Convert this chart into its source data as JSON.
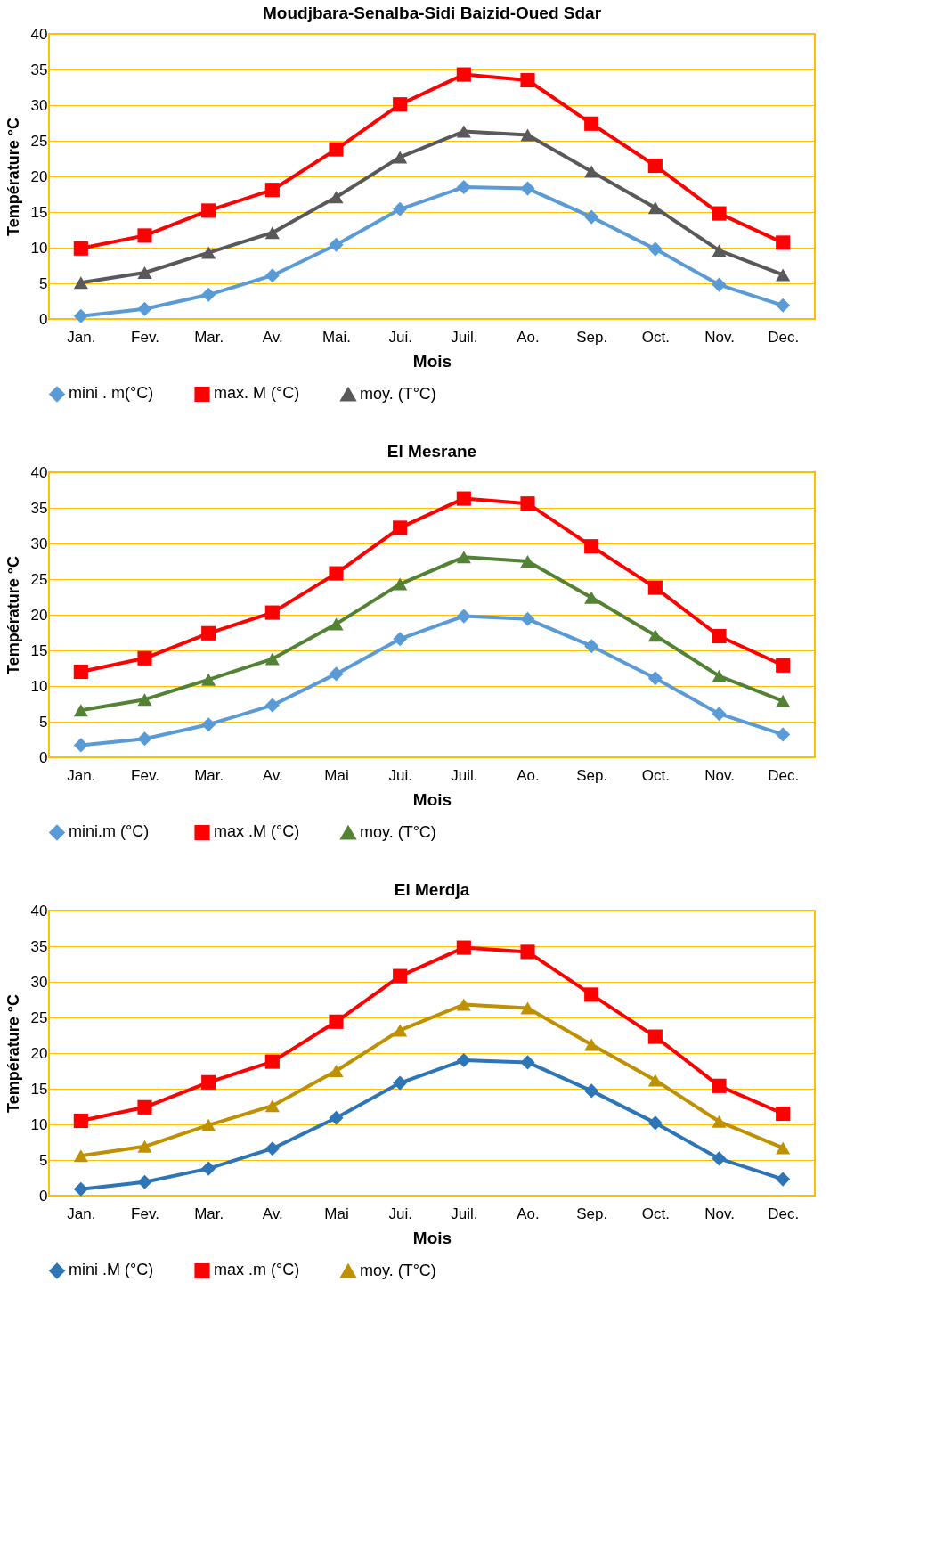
{
  "chart_data": [
    {
      "type": "line",
      "title": "Moudjbara-Senalba-Sidi Baizid-Oued Sdar",
      "xlabel": "Mois",
      "ylabel": "Température °C",
      "categories": [
        "Jan.",
        "Fev.",
        "Mar.",
        "Av.",
        "Mai.",
        "Jui.",
        "Juil.",
        "Ao.",
        "Sep.",
        "Oct.",
        "Nov.",
        "Dec."
      ],
      "ylim": [
        0,
        40
      ],
      "yticks": [
        0,
        5,
        10,
        15,
        20,
        25,
        30,
        35,
        40
      ],
      "grid": "y",
      "legend": "bottom",
      "line_style": "solid",
      "series": [
        {
          "name": "mini . m(°C)",
          "color": "#5b9bd5",
          "marker": "diamond",
          "values": [
            0.4,
            1.4,
            3.4,
            6.1,
            10.4,
            15.4,
            18.5,
            18.3,
            14.3,
            9.8,
            4.8,
            1.9
          ]
        },
        {
          "name": "max. M (°C)",
          "color": "#ff0000",
          "marker": "square",
          "values": [
            9.9,
            11.7,
            15.2,
            18.1,
            23.8,
            30.1,
            34.3,
            33.5,
            27.4,
            21.5,
            14.8,
            10.7
          ]
        },
        {
          "name": "moy. (T°C)",
          "color": "#595959",
          "marker": "triangle",
          "values": [
            5.1,
            6.5,
            9.3,
            12.1,
            17.1,
            22.7,
            26.3,
            25.8,
            20.7,
            15.6,
            9.6,
            6.2
          ]
        }
      ]
    },
    {
      "type": "line",
      "title": "El Mesrane",
      "xlabel": "Mois",
      "ylabel": "Température °C",
      "categories": [
        "Jan.",
        "Fev.",
        "Mar.",
        "Av.",
        "Mai",
        "Jui.",
        "Juil.",
        "Ao.",
        "Sep.",
        "Oct.",
        "Nov.",
        "Dec."
      ],
      "ylim": [
        0,
        40
      ],
      "yticks": [
        0,
        5,
        10,
        15,
        20,
        25,
        30,
        35,
        40
      ],
      "grid": "y",
      "legend": "bottom",
      "line_style": "solid",
      "series": [
        {
          "name": "mini.m  (°C)",
          "color": "#5b9bd5",
          "marker": "diamond",
          "values": [
            1.7,
            2.6,
            4.6,
            7.3,
            11.7,
            16.6,
            19.8,
            19.4,
            15.6,
            11.1,
            6.1,
            3.2
          ]
        },
        {
          "name": "max .M (°C)",
          "color": "#ff0000",
          "marker": "square",
          "values": [
            12.0,
            13.9,
            17.4,
            20.3,
            25.8,
            32.2,
            36.3,
            35.6,
            29.6,
            23.8,
            17.0,
            12.9
          ]
        },
        {
          "name": "moy. (T°C)",
          "color": "#548235",
          "marker": "triangle",
          "values": [
            6.6,
            8.1,
            10.9,
            13.8,
            18.7,
            24.3,
            28.1,
            27.5,
            22.4,
            17.1,
            11.4,
            7.9
          ]
        }
      ]
    },
    {
      "type": "line",
      "title": "El Merdja",
      "xlabel": "Mois",
      "ylabel": "Température °C",
      "categories": [
        "Jan.",
        "Fev.",
        "Mar.",
        "Av.",
        "Mai",
        "Jui.",
        "Juil.",
        "Ao.",
        "Sep.",
        "Oct.",
        "Nov.",
        "Dec."
      ],
      "ylim": [
        0,
        40
      ],
      "yticks": [
        0,
        5,
        10,
        15,
        20,
        25,
        30,
        35,
        40
      ],
      "grid": "y",
      "legend": "bottom",
      "line_style": "solid",
      "series": [
        {
          "name": "mini .M (°C)",
          "color": "#2e75b6",
          "marker": "diamond",
          "values": [
            0.9,
            1.9,
            3.8,
            6.6,
            10.9,
            15.8,
            19.0,
            18.7,
            14.7,
            10.2,
            5.2,
            2.3
          ]
        },
        {
          "name": "max .m (°C)",
          "color": "#ff0000",
          "marker": "square",
          "values": [
            10.5,
            12.4,
            15.9,
            18.8,
            24.4,
            30.8,
            34.8,
            34.2,
            28.2,
            22.3,
            15.4,
            11.5
          ]
        },
        {
          "name": "moy. (T°C)",
          "color": "#bf9000",
          "marker": "triangle",
          "values": [
            5.6,
            6.9,
            9.9,
            12.6,
            17.5,
            23.2,
            26.8,
            26.3,
            21.2,
            16.2,
            10.4,
            6.7
          ]
        }
      ]
    }
  ]
}
